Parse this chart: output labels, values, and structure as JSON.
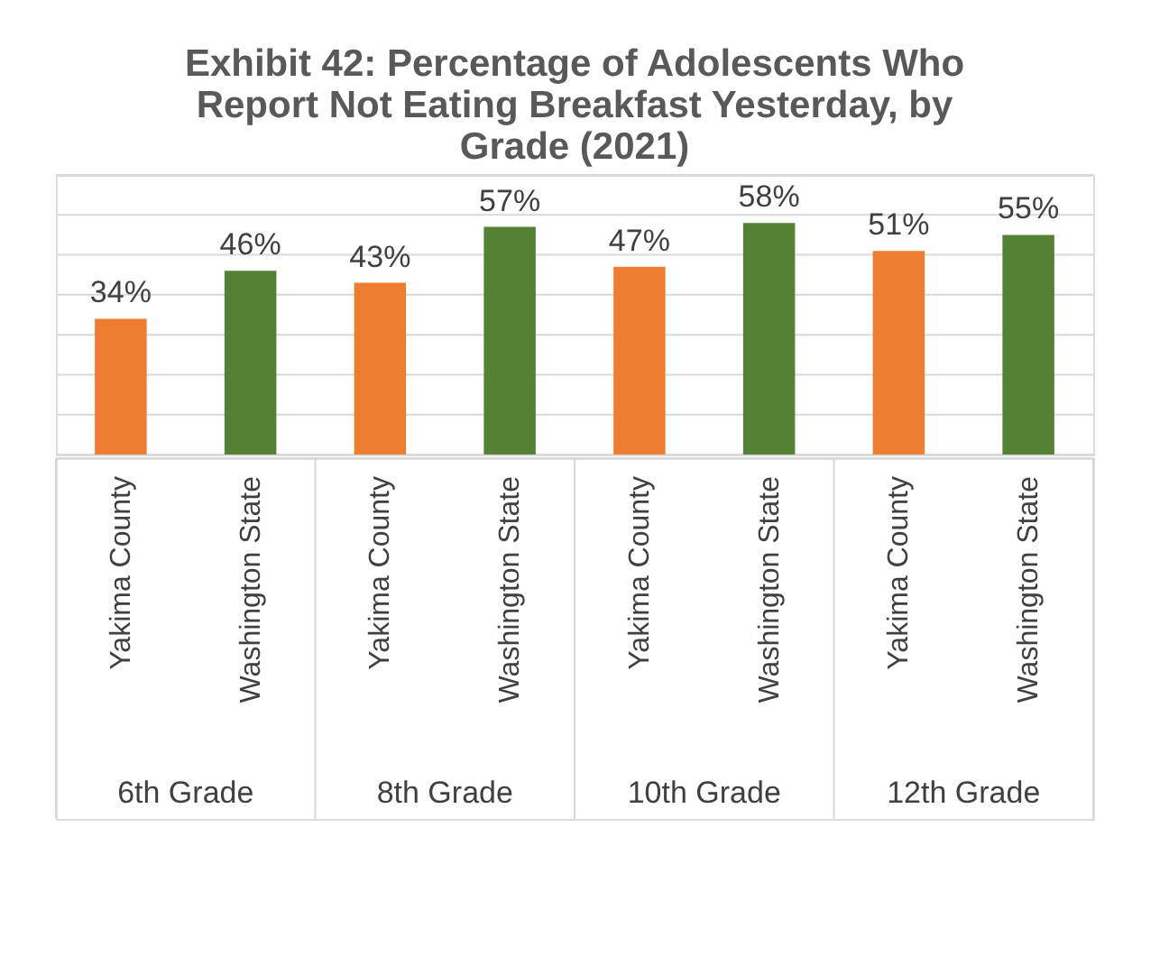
{
  "chart_data": {
    "type": "bar",
    "title": "Exhibit 42: Percentage of Adolescents Who Report Not Eating Breakfast Yesterday, by Grade (2021)",
    "categories": [
      "6th Grade",
      "8th Grade",
      "10th Grade",
      "12th Grade"
    ],
    "series": [
      {
        "name": "Yakima County",
        "color": "#ed7d31",
        "values": [
          34,
          43,
          47,
          51
        ],
        "value_labels": [
          "34%",
          "43%",
          "47%",
          "51%"
        ]
      },
      {
        "name": "Washington State",
        "color": "#548235",
        "values": [
          46,
          57,
          58,
          55
        ],
        "value_labels": [
          "46%",
          "57%",
          "58%",
          "55%"
        ]
      }
    ],
    "ylim": [
      0,
      70
    ],
    "yticks": [
      {
        "value": 0,
        "label": null
      },
      {
        "value": 10,
        "label": null
      },
      {
        "value": 20,
        "label": null
      },
      {
        "value": 30,
        "label": null
      },
      {
        "value": 40,
        "label": null
      },
      {
        "value": 50,
        "label": null
      },
      {
        "value": 60,
        "label": null
      },
      {
        "value": 70,
        "label": null
      }
    ],
    "grid": "y",
    "tick_labels": false
  }
}
